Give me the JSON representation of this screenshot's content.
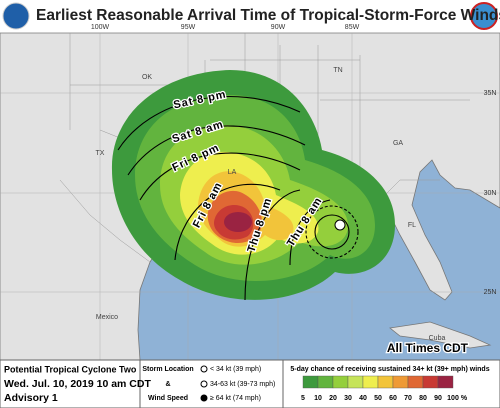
{
  "header": {
    "title": "Earliest Reasonable Arrival Time of Tropical-Storm-Force Winds"
  },
  "map": {
    "lon_labels": [
      "100W",
      "95W",
      "90W",
      "85W"
    ],
    "lat_labels": [
      "35N",
      "30N",
      "25N"
    ],
    "places": [
      "OK",
      "TN",
      "TX",
      "LA",
      "GA",
      "FL",
      "Mexico",
      "Cuba"
    ],
    "arrival_labels": [
      "Sat 8 pm",
      "Sat 8 am",
      "Fri 8 pm",
      "Fri 8 am",
      "Thu 8 pm",
      "Thu 8 am"
    ],
    "note": "All Times CDT"
  },
  "info": {
    "storm": "Potential Tropical Cyclone Two",
    "date": "Wed. Jul. 10, 2019 10 am CDT",
    "advisory": "Advisory 1"
  },
  "legend_storm": {
    "title_lines": [
      "Storm Location",
      "&",
      "Wind Speed"
    ],
    "items": [
      "< 34 kt (39 mph)",
      "34-63 kt (39-73 mph)",
      "≥ 64 kt (74 mph)"
    ]
  },
  "legend_chance": {
    "title": "5-day chance of receiving sustained 34+ kt (39+ mph) winds",
    "labels": [
      "5",
      "10",
      "20",
      "30",
      "40",
      "50",
      "60",
      "70",
      "80",
      "90",
      "100",
      "%"
    ],
    "colors": [
      "#3d9a3d",
      "#62b43e",
      "#94cf3c",
      "#c6e45a",
      "#eeee4e",
      "#f2c43a",
      "#ee9a36",
      "#e06834",
      "#c83a34",
      "#9a2342"
    ]
  }
}
